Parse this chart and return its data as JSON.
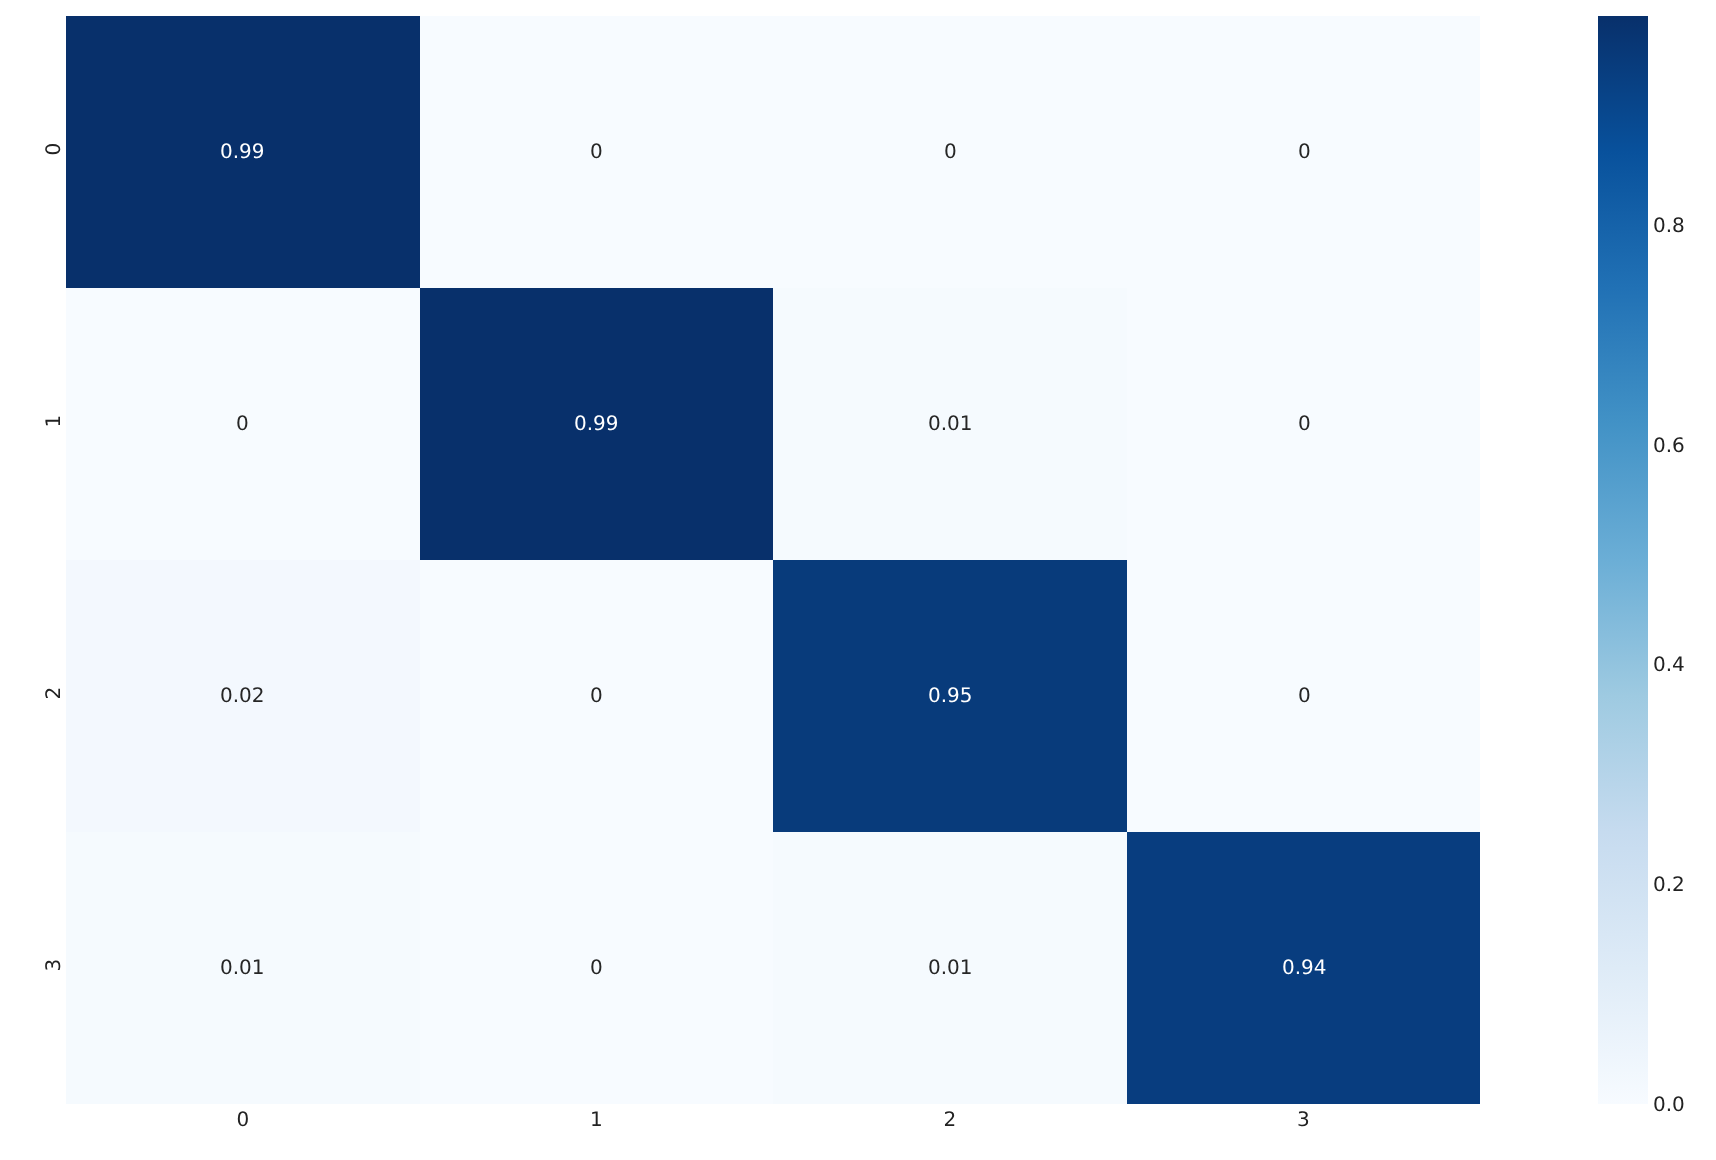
{
  "chart_data": {
    "type": "heatmap",
    "categories": [
      "0",
      "1",
      "2",
      "3"
    ],
    "y_categories": [
      "0",
      "1",
      "2",
      "3"
    ],
    "cells": [
      [
        0.99,
        0,
        0,
        0
      ],
      [
        0,
        0.99,
        0.01,
        0
      ],
      [
        0.02,
        0,
        0.95,
        0
      ],
      [
        0.01,
        0,
        0.01,
        0.94
      ]
    ],
    "clim": [
      0,
      0.99
    ],
    "cticks": [
      {
        "value": 0,
        "label": "0.0"
      },
      {
        "value": 0.2,
        "label": "0.2"
      },
      {
        "value": 0.4,
        "label": "0.4"
      },
      {
        "value": 0.6,
        "label": "0.6"
      },
      {
        "value": 0.8,
        "label": "0.8"
      }
    ],
    "data_labels": true
  }
}
